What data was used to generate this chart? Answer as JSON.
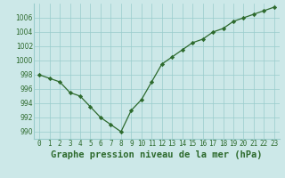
{
  "x": [
    0,
    1,
    2,
    3,
    4,
    5,
    6,
    7,
    8,
    9,
    10,
    11,
    12,
    13,
    14,
    15,
    16,
    17,
    18,
    19,
    20,
    21,
    22,
    23
  ],
  "y": [
    998,
    997.5,
    997,
    995.5,
    995,
    993.5,
    992,
    991,
    990,
    993,
    994.5,
    997,
    999.5,
    1000.5,
    1001.5,
    1002.5,
    1003,
    1004,
    1004.5,
    1005.5,
    1006,
    1006.5,
    1007,
    1007.5
  ],
  "line_color": "#2d6a2d",
  "marker_color": "#2d6a2d",
  "bg_color": "#cce8e8",
  "grid_color": "#99cccc",
  "title": "Graphe pression niveau de la mer (hPa)",
  "ylim": [
    989,
    1008
  ],
  "yticks": [
    990,
    992,
    994,
    996,
    998,
    1000,
    1002,
    1004,
    1006
  ],
  "xticks": [
    0,
    1,
    2,
    3,
    4,
    5,
    6,
    7,
    8,
    9,
    10,
    11,
    12,
    13,
    14,
    15,
    16,
    17,
    18,
    19,
    20,
    21,
    22,
    23
  ],
  "tick_fontsize": 5.5,
  "title_fontsize": 7.5,
  "title_fontweight": "bold"
}
